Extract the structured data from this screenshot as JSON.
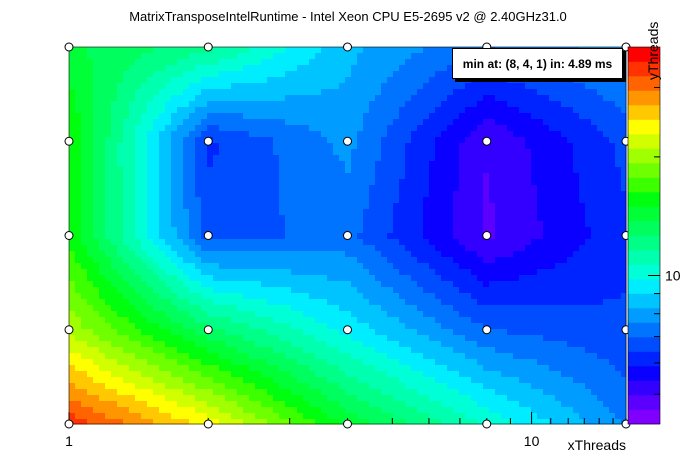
{
  "title": "MatrixTransposeIntelRuntime - Intel Xeon CPU E5-2695 v2 @ 2.40GHz31.0",
  "annotation": "min at: (8, 4, 1) in: 4.89 ms",
  "chart_data": {
    "type": "heatmap",
    "xlabel": "xThreads",
    "ylabel": "yThreads",
    "x": [
      1,
      2,
      4,
      8,
      16
    ],
    "y": [
      1,
      2,
      4,
      8,
      16
    ],
    "xscale": "log",
    "yscale": "log",
    "z": [
      [
        34.0,
        24.0,
        14.5,
        10.5,
        7.5
      ],
      [
        20.5,
        13.0,
        9.5,
        7.0,
        6.5
      ],
      [
        16.0,
        6.7,
        7.2,
        4.89,
        6.3
      ],
      [
        16.5,
        6.3,
        7.8,
        5.0,
        6.6
      ],
      [
        14.0,
        12.0,
        8.5,
        7.0,
        8.0
      ]
    ],
    "zlim": [
      4.2,
      38
    ],
    "zscale": "log",
    "x_tick_labels": [
      "1",
      "10"
    ],
    "z_tick_labels": [
      "10"
    ],
    "palette": [
      "#8000ff",
      "#5b00ff",
      "#3300ff",
      "#0a00ff",
      "#0024ff",
      "#004cff",
      "#0074ff",
      "#009cff",
      "#00c4ff",
      "#00ecff",
      "#00ffd6",
      "#00ffae",
      "#00ff86",
      "#00ff5e",
      "#00ff36",
      "#00ff0e",
      "#3cff00",
      "#6eff00",
      "#a0ff00",
      "#d2ff00",
      "#ffff00",
      "#ffc800",
      "#ff9600",
      "#ff6400",
      "#ff3200",
      "#ff0000"
    ]
  }
}
